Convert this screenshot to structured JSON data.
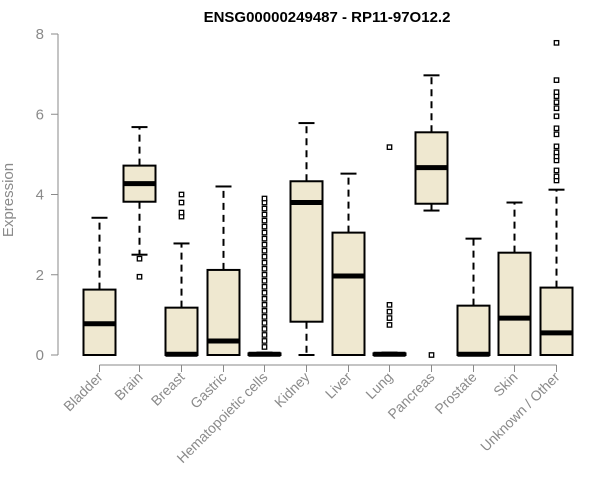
{
  "chart_data": {
    "type": "box",
    "title": "ENSG00000249487 - RP11-97O12.2",
    "ylabel": "Expression",
    "ylim": [
      0,
      8
    ],
    "yticks": [
      0,
      2,
      4,
      6,
      8
    ],
    "box_fill": "#efe8d0",
    "categories": [
      "Bladder",
      "Brain",
      "Breast",
      "Gastric",
      "Hematopoietic cells",
      "Kidney",
      "Liver",
      "Lung",
      "Pancreas",
      "Prostate",
      "Skin",
      "Unknown / Other"
    ],
    "boxes": [
      {
        "whisker_low": 0,
        "q1": 0,
        "median": 0.78,
        "q3": 1.63,
        "whisker_high": 3.42,
        "outliers": []
      },
      {
        "whisker_low": 2.5,
        "q1": 3.82,
        "median": 4.27,
        "q3": 4.72,
        "whisker_high": 5.68,
        "outliers": [
          2.4,
          1.95
        ]
      },
      {
        "whisker_low": 0,
        "q1": 0,
        "median": 0.02,
        "q3": 1.18,
        "whisker_high": 2.78,
        "outliers": [
          3.45,
          3.55,
          3.8,
          4.0
        ]
      },
      {
        "whisker_low": 0,
        "q1": 0,
        "median": 0.35,
        "q3": 2.12,
        "whisker_high": 4.2,
        "outliers": []
      },
      {
        "whisker_low": 0,
        "q1": 0,
        "median": 0.02,
        "q3": 0.04,
        "whisker_high": 0.06,
        "outliers": [
          0.2,
          0.35,
          0.5,
          0.65,
          0.8,
          0.95,
          1.1,
          1.25,
          1.4,
          1.55,
          1.7,
          1.85,
          2.0,
          2.15,
          2.3,
          2.45,
          2.6,
          2.75,
          2.9,
          3.05,
          3.2,
          3.35,
          3.5,
          3.65,
          3.8,
          3.9
        ]
      },
      {
        "whisker_low": 0,
        "q1": 0.83,
        "median": 3.8,
        "q3": 4.33,
        "whisker_high": 5.78,
        "outliers": []
      },
      {
        "whisker_low": 0,
        "q1": 0,
        "median": 1.97,
        "q3": 3.05,
        "whisker_high": 4.52,
        "outliers": []
      },
      {
        "whisker_low": 0,
        "q1": 0,
        "median": 0.02,
        "q3": 0.04,
        "whisker_high": 0.06,
        "outliers": [
          0.75,
          0.92,
          1.08,
          1.25,
          5.18
        ]
      },
      {
        "whisker_low": 3.6,
        "q1": 3.77,
        "median": 4.67,
        "q3": 5.55,
        "whisker_high": 6.97,
        "outliers": [
          0.0
        ]
      },
      {
        "whisker_low": 0,
        "q1": 0,
        "median": 0.02,
        "q3": 1.23,
        "whisker_high": 2.9,
        "outliers": []
      },
      {
        "whisker_low": 0,
        "q1": 0,
        "median": 0.92,
        "q3": 2.55,
        "whisker_high": 3.8,
        "outliers": []
      },
      {
        "whisker_low": 0,
        "q1": 0,
        "median": 0.55,
        "q3": 1.68,
        "whisker_high": 4.12,
        "outliers": [
          4.35,
          4.45,
          4.6,
          4.85,
          4.95,
          5.05,
          5.2,
          5.5,
          5.65,
          5.95,
          6.15,
          6.3,
          6.45,
          6.55,
          6.85,
          7.78
        ]
      }
    ]
  }
}
